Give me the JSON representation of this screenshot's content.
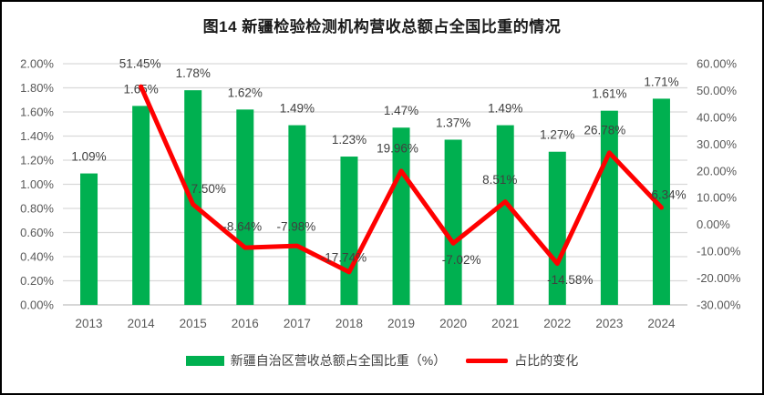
{
  "title": "图14 新疆检验检测机构营收总额占全国比重的情况",
  "colors": {
    "bar": "#00B050",
    "line": "#FF0000",
    "grid": "#D9D9D9",
    "axis_line": "#BFBFBF",
    "axis_text": "#595959",
    "label_text": "#404040",
    "title_text": "#1A1A1A",
    "background": "#FFFFFF",
    "border": "#000000"
  },
  "chart_data": {
    "type": "combo-bar-line",
    "title": "图14 新疆检验检测机构营收总额占全国比重的情况",
    "categories": [
      "2013",
      "2014",
      "2015",
      "2016",
      "2017",
      "2018",
      "2019",
      "2020",
      "2021",
      "2022",
      "2023",
      "2024"
    ],
    "series": [
      {
        "name": "新疆自治区营收总额占全国比重（%）",
        "type": "bar",
        "axis": "left",
        "values": [
          1.09,
          1.65,
          1.78,
          1.62,
          1.49,
          1.23,
          1.47,
          1.37,
          1.49,
          1.27,
          1.61,
          1.71
        ],
        "labels": [
          "1.09%",
          "1.65%",
          "1.78%",
          "1.62%",
          "1.49%",
          "1.23%",
          "1.47%",
          "1.37%",
          "1.49%",
          "1.27%",
          "1.61%",
          "1.71%"
        ]
      },
      {
        "name": "占比的变化",
        "type": "line",
        "axis": "right",
        "values": [
          null,
          51.45,
          7.5,
          -8.64,
          -7.98,
          -17.74,
          19.96,
          -7.02,
          8.51,
          -14.58,
          26.78,
          6.34
        ],
        "labels": [
          null,
          "51.45%",
          "7.50%",
          "-8.64%",
          "-7.98%",
          "-17.74%",
          "19.96%",
          "-7.02%",
          "8.51%",
          "-14.58%",
          "26.78%",
          "6.34%"
        ],
        "label_offsets": [
          [
            0,
            0
          ],
          [
            -1,
            -25
          ],
          [
            17,
            -17
          ],
          [
            -3,
            -23
          ],
          [
            -1,
            -21
          ],
          [
            -6,
            -16
          ],
          [
            -4,
            -25
          ],
          [
            9,
            18
          ],
          [
            -6,
            -24
          ],
          [
            14,
            18
          ],
          [
            -5,
            -25
          ],
          [
            8,
            -14
          ]
        ]
      }
    ],
    "left_axis": {
      "min": 0,
      "max": 2,
      "step": 0.2,
      "tick_labels": [
        "0.00%",
        "0.20%",
        "0.40%",
        "0.60%",
        "0.80%",
        "1.00%",
        "1.20%",
        "1.40%",
        "1.60%",
        "1.80%",
        "2.00%"
      ]
    },
    "right_axis": {
      "min": -30,
      "max": 60,
      "step": 10,
      "tick_labels": [
        "-30.00%",
        "-20.00%",
        "-10.00%",
        "0.00%",
        "10.00%",
        "20.00%",
        "30.00%",
        "40.00%",
        "50.00%",
        "60.00%"
      ]
    },
    "grid": true,
    "legend_position": "bottom"
  }
}
